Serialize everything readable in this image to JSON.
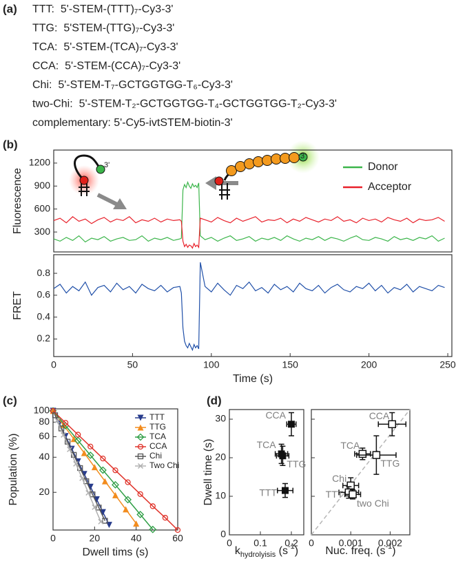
{
  "panel_a": {
    "label": "(a)",
    "lines": [
      "TTT:  5'-STEM-(TTT)₇-Cy3-3'",
      "TTG:  5'STEM-(TTG)₇-Cy3-3'",
      "TCA:  5'-STEM-(TCA)₇-Cy3-3'",
      "CCA:  5'-STEM-(CCA)₇-Cy3-3'",
      "Chi:  5'-STEM-T₇-GCTGGTGG-T₆-Cy3-3'",
      "two-Chi:  5'-STEM-T₂-GCTGGTGG-T₄-GCTGGTGG-T₂-Cy3-3'",
      "complementary: 5'-Cy5-ivtSTEM-biotin-3'"
    ]
  },
  "chart_data": [
    {
      "type": "line",
      "panel_label": "(b)",
      "ylabel": "Fluorescence",
      "x": [
        0,
        4,
        8,
        12,
        16,
        20,
        24,
        28,
        32,
        36,
        40,
        44,
        48,
        52,
        56,
        60,
        64,
        68,
        72,
        76,
        80,
        81,
        82,
        83,
        84,
        85,
        86,
        87,
        88,
        89,
        90,
        91,
        92,
        93,
        96,
        100,
        104,
        108,
        112,
        116,
        120,
        124,
        128,
        132,
        136,
        140,
        144,
        148,
        152,
        156,
        160,
        164,
        168,
        172,
        176,
        180,
        184,
        188,
        192,
        196,
        200,
        204,
        208,
        212,
        216,
        220,
        224,
        228,
        232,
        236,
        240,
        244,
        248
      ],
      "xlim": [
        0,
        252.6
      ],
      "ylim": [
        40,
        1370
      ],
      "yticks": [
        300,
        600,
        900,
        1200
      ],
      "legend": "upper right",
      "series": [
        {
          "name": "Donor",
          "color": "#3bb54a",
          "values": [
            210,
            180,
            230,
            190,
            250,
            170,
            220,
            200,
            240,
            180,
            210,
            230,
            190,
            200,
            250,
            180,
            220,
            200,
            230,
            190,
            210,
            220,
            850,
            920,
            880,
            950,
            900,
            870,
            930,
            890,
            910,
            880,
            940,
            250,
            200,
            230,
            180,
            220,
            250,
            190,
            210,
            240,
            180,
            220,
            200,
            230,
            190,
            250,
            210,
            180,
            220,
            200,
            240,
            190,
            230,
            210,
            180,
            220,
            250,
            200,
            190,
            230,
            210,
            180,
            240,
            200,
            220,
            190,
            230,
            210,
            250,
            180,
            220
          ]
        },
        {
          "name": "Acceptor",
          "color": "#e8202a",
          "values": [
            450,
            480,
            420,
            500,
            440,
            470,
            410,
            460,
            490,
            430,
            470,
            450,
            500,
            420,
            460,
            440,
            480,
            430,
            470,
            450,
            460,
            440,
            180,
            110,
            140,
            100,
            130,
            120,
            90,
            150,
            110,
            130,
            100,
            480,
            460,
            430,
            490,
            450,
            420,
            480,
            440,
            470,
            500,
            430,
            460,
            450,
            480,
            420,
            470,
            440,
            490,
            460,
            430,
            470,
            450,
            500,
            440,
            460,
            420,
            480,
            450,
            470,
            430,
            490,
            460,
            440,
            480,
            420,
            470,
            450,
            460,
            490,
            440
          ]
        }
      ],
      "annotations": [
        "3'",
        "3'"
      ]
    },
    {
      "type": "line",
      "ylabel": "FRET",
      "xlabel": "Time (s)",
      "x": [
        0,
        4,
        8,
        12,
        16,
        20,
        24,
        28,
        32,
        36,
        40,
        44,
        48,
        52,
        56,
        60,
        64,
        68,
        72,
        76,
        80,
        81,
        82,
        83,
        84,
        85,
        86,
        87,
        88,
        89,
        90,
        91,
        92,
        93,
        96,
        100,
        104,
        108,
        112,
        116,
        120,
        124,
        128,
        132,
        136,
        140,
        144,
        148,
        152,
        156,
        160,
        164,
        168,
        172,
        176,
        180,
        184,
        188,
        192,
        196,
        200,
        204,
        208,
        212,
        216,
        220,
        224,
        228,
        232,
        236,
        240,
        244,
        248
      ],
      "xlim": [
        0,
        252.6
      ],
      "xticks": [
        0,
        50,
        100,
        150,
        200,
        250
      ],
      "ylim": [
        0.04,
        0.97
      ],
      "yticks": [
        0.2,
        0.4,
        0.6,
        0.8
      ],
      "color": "#1f4fa8",
      "values": [
        0.66,
        0.7,
        0.62,
        0.68,
        0.64,
        0.72,
        0.6,
        0.67,
        0.69,
        0.63,
        0.71,
        0.65,
        0.68,
        0.62,
        0.7,
        0.66,
        0.64,
        0.69,
        0.63,
        0.67,
        0.68,
        0.62,
        0.3,
        0.18,
        0.14,
        0.12,
        0.16,
        0.13,
        0.1,
        0.15,
        0.12,
        0.14,
        0.11,
        0.9,
        0.68,
        0.63,
        0.71,
        0.65,
        0.6,
        0.69,
        0.66,
        0.72,
        0.64,
        0.67,
        0.62,
        0.7,
        0.65,
        0.68,
        0.63,
        0.71,
        0.66,
        0.64,
        0.69,
        0.62,
        0.67,
        0.7,
        0.65,
        0.63,
        0.68,
        0.66,
        0.71,
        0.64,
        0.69,
        0.62,
        0.67,
        0.65,
        0.7,
        0.63,
        0.68,
        0.66,
        0.64,
        0.69,
        0.67
      ]
    },
    {
      "type": "line",
      "panel_label": "(c)",
      "xlabel": "Dwell tims (s)",
      "ylabel": "Population (%)",
      "log_y": true,
      "xlim": [
        0,
        60
      ],
      "xticks": [
        0,
        20,
        40,
        60
      ],
      "ylim": [
        9.5,
        104
      ],
      "yticks": [
        20,
        40,
        60,
        80,
        100
      ],
      "legend": "upper right",
      "series": [
        {
          "name": "TTT",
          "color": "#283c8c",
          "marker": "triangle-down",
          "x": [
            0,
            3,
            6,
            9,
            12,
            15,
            18,
            21,
            24,
            27
          ],
          "values": [
            100,
            77.9,
            60.7,
            47.2,
            36.8,
            28.7,
            22.3,
            17.4,
            13.5,
            10.5
          ]
        },
        {
          "name": "TTG",
          "color": "#f28c1e",
          "marker": "triangle-up",
          "x": [
            0,
            5,
            10,
            15,
            20,
            25,
            30,
            35,
            40
          ],
          "values": [
            100,
            75.7,
            57.4,
            43.5,
            32.9,
            24.9,
            18.9,
            14.3,
            10.8
          ]
        },
        {
          "name": "TCA",
          "color": "#2e9e45",
          "marker": "diamond",
          "x": [
            0,
            6,
            12,
            18,
            24,
            30,
            36,
            42,
            48
          ],
          "values": [
            100,
            74.6,
            55.7,
            41.6,
            31.0,
            23.2,
            17.3,
            12.9,
            9.6
          ]
        },
        {
          "name": "CCA",
          "color": "#e0332a",
          "marker": "circle-open",
          "x": [
            0,
            6,
            12,
            18,
            24,
            30,
            36,
            42,
            48,
            54,
            60
          ],
          "values": [
            100,
            79.0,
            62.5,
            49.4,
            39.0,
            30.9,
            24.4,
            19.3,
            15.2,
            12.1,
            9.5
          ]
        },
        {
          "name": "Chi",
          "color": "#555555",
          "marker": "square-open",
          "x": [
            1,
            4,
            7,
            10,
            13,
            16,
            19,
            22,
            25
          ],
          "values": [
            91.7,
            70.6,
            54.4,
            41.9,
            32.3,
            24.9,
            19.2,
            14.8,
            11.4
          ]
        },
        {
          "name": "Two Chi",
          "color": "#b0b0b0",
          "marker": "x",
          "x": [
            2,
            5,
            8,
            11,
            14,
            17,
            20,
            23
          ],
          "values": [
            82.7,
            62.1,
            46.7,
            35.1,
            26.4,
            19.8,
            14.9,
            11.2
          ]
        }
      ]
    },
    {
      "type": "scatter",
      "panel_label": "(d)",
      "ylabel": "Dwell time (s)",
      "xlabel": [
        "k",
        "hydrolyisis",
        " (s",
        "-1",
        ")"
      ],
      "xlim": [
        0,
        0.24
      ],
      "xticks": [
        0,
        0.1,
        0.2
      ],
      "ylim": [
        0,
        32.5
      ],
      "yticks": [
        0,
        10,
        20,
        30
      ],
      "marker": "filled-square",
      "color": "#111111",
      "label_color": "#7f7f7f",
      "labels": [
        "CCA",
        "TCA",
        "TTG",
        "TTT"
      ],
      "x": [
        0.2,
        0.168,
        0.172,
        0.18
      ],
      "values": [
        28.7,
        21,
        20.5,
        11.5
      ],
      "xerr": [
        0.015,
        0.02,
        0.02,
        0.025
      ],
      "yerr": [
        3,
        2.5,
        2.5,
        1.8
      ]
    },
    {
      "type": "scatter",
      "xlabel": [
        "Nuc. freq. (s",
        "-1",
        ")"
      ],
      "xlim": [
        0,
        0.0025
      ],
      "xticks": [
        0,
        0.001,
        0.002
      ],
      "ylim": [
        0,
        32.5
      ],
      "yticks": [
        0,
        10,
        20,
        30
      ],
      "ytick_labels": false,
      "marker": "open-square",
      "color": "#111111",
      "label_color": "#7f7f7f",
      "reference_line": "dashed",
      "labels": [
        "CCA",
        "TCA",
        "TTG",
        "Chi",
        "TTT",
        "two Chi"
      ],
      "x": [
        0.00205,
        0.0013,
        0.00165,
        0.001,
        0.00095,
        0.00105
      ],
      "values": [
        28.7,
        21,
        20.7,
        12.8,
        11,
        10.5
      ],
      "xerr": [
        0.00035,
        0.0002,
        0.0005,
        0.0002,
        0.00025,
        0.0002
      ],
      "yerr": [
        3,
        1.5,
        5,
        2,
        1.5,
        1.2
      ]
    }
  ]
}
